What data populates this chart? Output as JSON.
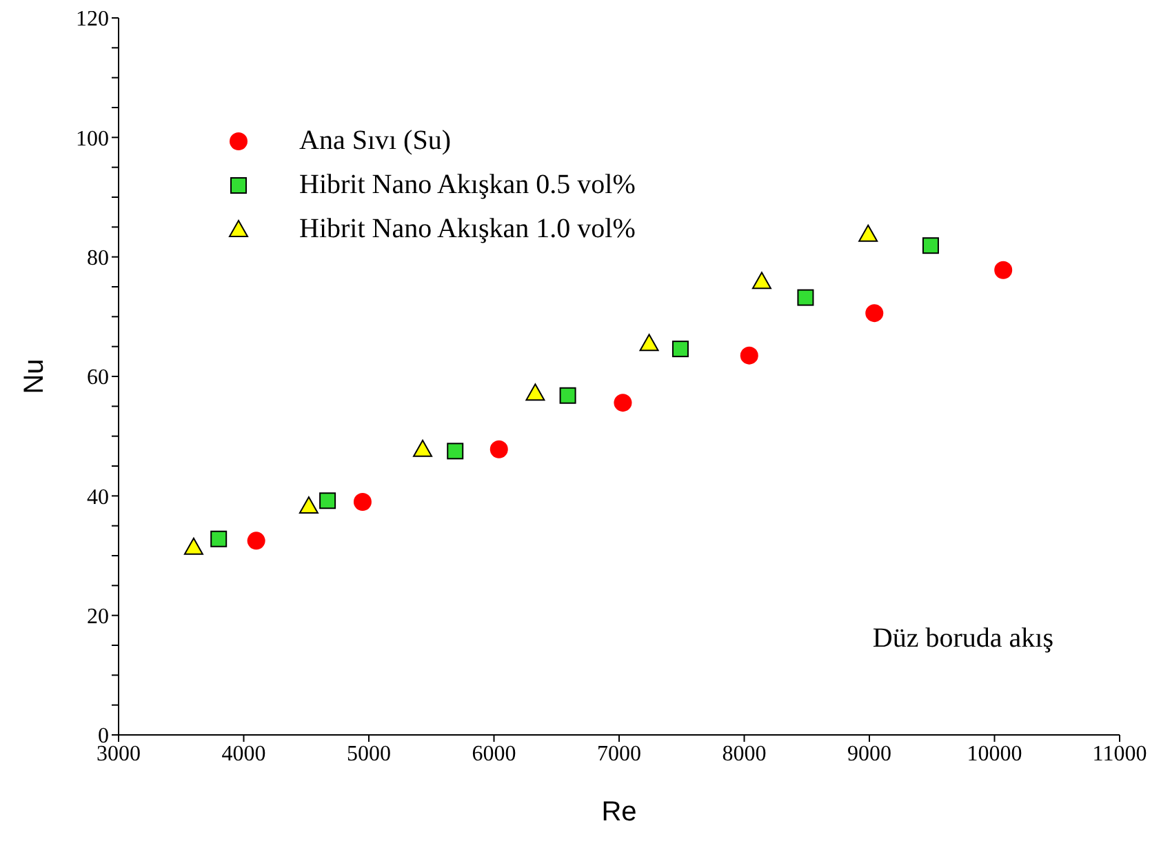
{
  "chart_data": {
    "type": "scatter",
    "xlabel": "Re",
    "ylabel": "Nu",
    "xlim": [
      3000,
      11000
    ],
    "ylim": [
      0,
      120
    ],
    "xticks": [
      3000,
      4000,
      5000,
      6000,
      7000,
      8000,
      9000,
      10000,
      11000
    ],
    "yticks": [
      0,
      {
        "value": 5,
        "label": null
      },
      {
        "value": 10,
        "label": null
      },
      {
        "value": 15,
        "label": null
      },
      20,
      {
        "value": 25,
        "label": null
      },
      {
        "value": 30,
        "label": null
      },
      {
        "value": 35,
        "label": null
      },
      40,
      {
        "value": 45,
        "label": null
      },
      {
        "value": 50,
        "label": null
      },
      {
        "value": 55,
        "label": null
      },
      60,
      {
        "value": 65,
        "label": null
      },
      {
        "value": 70,
        "label": null
      },
      {
        "value": 75,
        "label": null
      },
      80,
      {
        "value": 85,
        "label": null
      },
      {
        "value": 90,
        "label": null
      },
      {
        "value": 95,
        "label": null
      },
      100,
      {
        "value": 105,
        "label": null
      },
      {
        "value": 110,
        "label": null
      },
      {
        "value": 115,
        "label": null
      },
      120
    ],
    "grid": false,
    "legend": "top left",
    "annotations": [
      "Düz boruda akış"
    ],
    "series": [
      {
        "name": "Ana Sıvı (Su)",
        "color": "#ff0000",
        "marker": "circle",
        "x": [
          4100,
          4950,
          6040,
          7030,
          8040,
          9040,
          10070
        ],
        "values": [
          32.5,
          39.0,
          47.8,
          55.6,
          63.5,
          70.6,
          77.8
        ]
      },
      {
        "name": "Hibrit Nano Akışkan 0.5 vol%",
        "color": "#33dd33",
        "marker": "square",
        "x": [
          3800,
          4670,
          5690,
          6590,
          7490,
          8490,
          9490
        ],
        "values": [
          32.8,
          39.2,
          47.5,
          56.8,
          64.6,
          73.2,
          81.9
        ]
      },
      {
        "name": "Hibrit Nano Akışkan 1.0 vol%",
        "color": "#ffff00",
        "marker": "triangle",
        "x": [
          3600,
          4520,
          5430,
          6330,
          7240,
          8140,
          8990
        ],
        "values": [
          31.4,
          38.3,
          47.8,
          57.2,
          65.5,
          75.9,
          83.8
        ]
      }
    ]
  }
}
